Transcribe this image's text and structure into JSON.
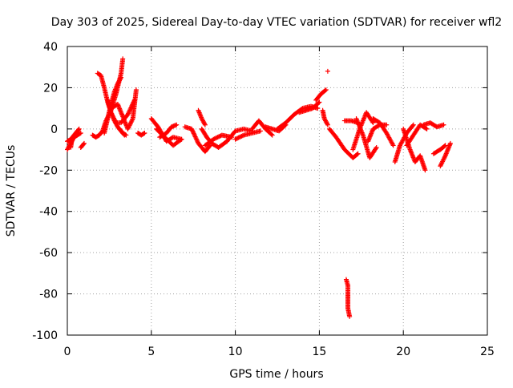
{
  "chart_data": {
    "type": "scatter",
    "title": "Day 303 of 2025, Sidereal Day-to-day VTEC variation (SDTVAR) for receiver wfl2",
    "xlabel": "GPS time / hours",
    "ylabel": "SDTVAR / TECUs",
    "xlim": [
      0,
      25
    ],
    "ylim": [
      -100,
      40
    ],
    "xticks": [
      "0",
      "5",
      "10",
      "15",
      "20",
      "25"
    ],
    "yticks": [
      "40",
      "20",
      "0",
      "-20",
      "-40",
      "-60",
      "-80",
      "-100"
    ],
    "grid": true,
    "marker": "+",
    "color": "#ff0000",
    "series": [
      {
        "x": [
          0.0,
          0.2,
          0.4,
          0.6,
          0.7
        ],
        "y": [
          -10,
          -7,
          -4,
          -1,
          0
        ]
      },
      {
        "x": [
          0.0,
          0.2,
          0.4,
          0.6,
          0.8
        ],
        "y": [
          -6,
          -5,
          -4,
          -3,
          -2
        ]
      },
      {
        "x": [
          0.2,
          0.3,
          0.5,
          0.6
        ],
        "y": [
          -9,
          -4,
          -2,
          -1
        ]
      },
      {
        "x": [
          0.8,
          1.0
        ],
        "y": [
          -9,
          -7
        ]
      },
      {
        "x": [
          1.5,
          1.7,
          1.9,
          2.1,
          2.3,
          2.6,
          2.9,
          3.2,
          3.3
        ],
        "y": [
          -3,
          -4,
          -3,
          -1,
          4,
          9,
          17,
          27,
          34
        ]
      },
      {
        "x": [
          1.8,
          2.0,
          2.2,
          2.4,
          2.6,
          2.8,
          3.0,
          3.2,
          3.4
        ],
        "y": [
          27,
          26,
          20,
          13,
          8,
          4,
          1,
          -1,
          -3
        ]
      },
      {
        "x": [
          2.2,
          2.4,
          2.6,
          2.8,
          3.0,
          3.2
        ],
        "y": [
          -2,
          5,
          12,
          18,
          22,
          25
        ]
      },
      {
        "x": [
          2.4,
          2.6,
          2.9,
          3.2,
          3.6,
          4.0
        ],
        "y": [
          14,
          8,
          3,
          3,
          7,
          14
        ]
      },
      {
        "x": [
          2.6,
          3.0,
          3.3,
          3.6,
          3.9,
          4.1
        ],
        "y": [
          10,
          12,
          6,
          0,
          5,
          19
        ]
      },
      {
        "x": [
          3.1,
          3.3,
          3.5
        ],
        "y": [
          0,
          -2,
          -3
        ]
      },
      {
        "x": [
          4.2,
          4.4,
          4.6
        ],
        "y": [
          -2,
          -3,
          -2
        ]
      },
      {
        "x": [
          5.0,
          5.4,
          5.9,
          6.3,
          6.8
        ],
        "y": [
          5,
          1,
          -6,
          -4,
          -5
        ]
      },
      {
        "x": [
          5.5,
          5.9,
          6.2,
          6.5
        ],
        "y": [
          -4,
          -2,
          1,
          2
        ]
      },
      {
        "x": [
          5.3,
          5.8,
          6.3,
          6.8
        ],
        "y": [
          0,
          -4,
          -8,
          -5
        ]
      },
      {
        "x": [
          7.0,
          7.4,
          7.8,
          8.2,
          8.5
        ],
        "y": [
          1,
          0,
          -7,
          -11,
          -8
        ]
      },
      {
        "x": [
          7.8,
          8.0,
          8.2
        ],
        "y": [
          9,
          5,
          2
        ]
      },
      {
        "x": [
          8.0,
          8.3,
          8.6,
          9.0,
          9.5
        ],
        "y": [
          0,
          -4,
          -7,
          -9,
          -6
        ]
      },
      {
        "x": [
          8.2,
          8.7,
          9.2,
          9.8
        ],
        "y": [
          -8,
          -5,
          -3,
          -4
        ]
      },
      {
        "x": [
          9.5,
          10.0,
          10.5,
          11.0
        ],
        "y": [
          -6,
          -1,
          0,
          -1
        ]
      },
      {
        "x": [
          10.0,
          10.5,
          11.0,
          11.5
        ],
        "y": [
          -5,
          -3,
          -2,
          -1
        ]
      },
      {
        "x": [
          11.0,
          11.4,
          11.8,
          12.2
        ],
        "y": [
          0,
          4,
          0,
          -3
        ]
      },
      {
        "x": [
          11.8,
          12.2,
          12.6,
          13.0
        ],
        "y": [
          1,
          0,
          -1,
          2
        ]
      },
      {
        "x": [
          12.5,
          13.0,
          13.5,
          14.0,
          14.5,
          14.9
        ],
        "y": [
          0,
          3,
          7,
          10,
          11,
          10
        ]
      },
      {
        "x": [
          13.8,
          14.2,
          14.6,
          15.0
        ],
        "y": [
          8,
          9,
          10,
          13
        ]
      },
      {
        "x": [
          14.8,
          15.1,
          15.4
        ],
        "y": [
          14,
          17,
          19
        ]
      },
      {
        "x": [
          15.2,
          15.3,
          15.5
        ],
        "y": [
          9,
          5,
          2
        ]
      },
      {
        "x": [
          15.5
        ],
        "y": [
          28
        ]
      },
      {
        "x": [
          15.6,
          16.0,
          16.5,
          17.0,
          17.3
        ],
        "y": [
          0,
          -4,
          -10,
          -14,
          -12
        ]
      },
      {
        "x": [
          16.6,
          16.7,
          16.7,
          16.7,
          16.7,
          16.8
        ],
        "y": [
          -73,
          -76,
          -79,
          -83,
          -87,
          -91
        ]
      },
      {
        "x": [
          16.5,
          16.9,
          17.3
        ],
        "y": [
          4,
          4,
          3
        ]
      },
      {
        "x": [
          17.0,
          17.4,
          17.8,
          18.2
        ],
        "y": [
          -10,
          0,
          8,
          3
        ]
      },
      {
        "x": [
          17.2,
          17.6,
          18.0,
          18.4
        ],
        "y": [
          5,
          -3,
          -14,
          -9
        ]
      },
      {
        "x": [
          17.9,
          18.2,
          18.6,
          19.0
        ],
        "y": [
          -6,
          0,
          2,
          2
        ]
      },
      {
        "x": [
          18.2,
          18.6,
          19.0,
          19.4
        ],
        "y": [
          5,
          3,
          -2,
          -8
        ]
      },
      {
        "x": [
          19.5,
          19.8,
          20.2,
          20.6
        ],
        "y": [
          -16,
          -8,
          -2,
          2
        ]
      },
      {
        "x": [
          20.0,
          20.4,
          20.7,
          21.0,
          21.3
        ],
        "y": [
          0,
          -10,
          -16,
          -13,
          -20
        ]
      },
      {
        "x": [
          20.2,
          20.6,
          21.0,
          21.4
        ],
        "y": [
          -8,
          -3,
          2,
          0
        ]
      },
      {
        "x": [
          21.2,
          21.6,
          22.0,
          22.4
        ],
        "y": [
          2,
          3,
          1,
          2
        ]
      },
      {
        "x": [
          21.8,
          22.2,
          22.5
        ],
        "y": [
          -12,
          -10,
          -8
        ]
      },
      {
        "x": [
          22.2,
          22.5,
          22.8
        ],
        "y": [
          -18,
          -13,
          -7
        ]
      }
    ]
  }
}
